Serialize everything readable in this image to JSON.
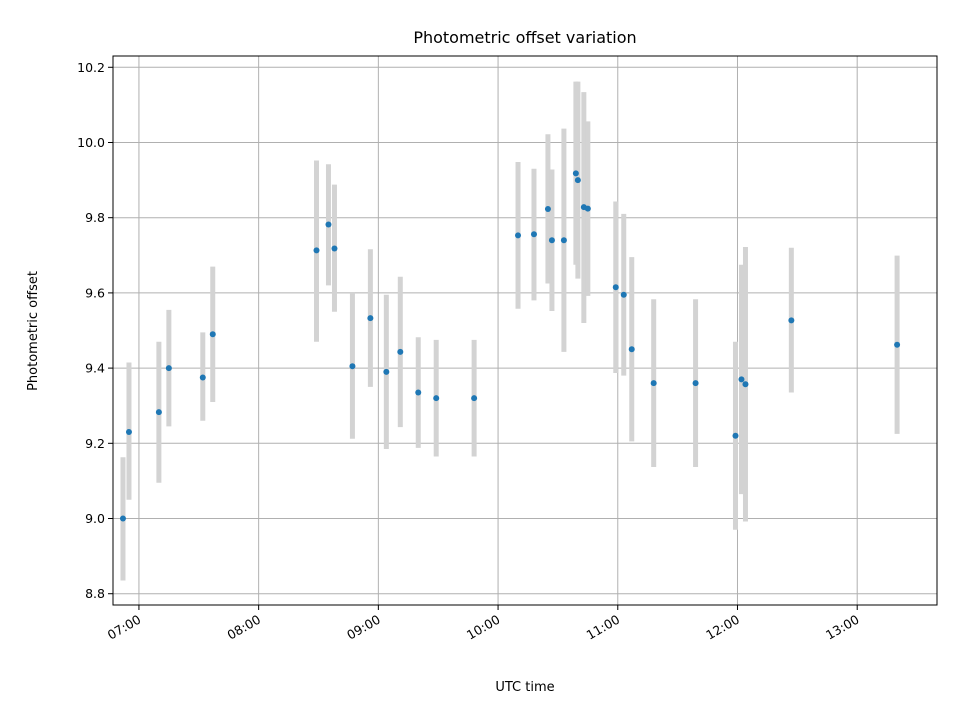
{
  "chart_data": {
    "type": "scatter",
    "title": "Photometric offset variation",
    "xlabel": "UTC time",
    "ylabel": "Photometric offset",
    "x_axis_type": "time",
    "xlim": [
      "06:47",
      "13:40"
    ],
    "ylim": [
      8.77,
      10.23
    ],
    "x_ticks": [
      "07:00",
      "08:00",
      "09:00",
      "10:00",
      "11:00",
      "12:00",
      "13:00"
    ],
    "y_ticks": [
      8.8,
      9.0,
      9.2,
      9.4,
      9.6,
      9.8,
      10.0,
      10.2
    ],
    "grid": true,
    "marker_color": "#1f77b4",
    "errorbar_color": "#d3d3d3",
    "points": [
      {
        "time": "06:52",
        "value": 9.0,
        "lower": 8.835,
        "upper": 9.163
      },
      {
        "time": "06:55",
        "value": 9.23,
        "lower": 9.05,
        "upper": 9.415
      },
      {
        "time": "07:10",
        "value": 9.283,
        "lower": 9.095,
        "upper": 9.47
      },
      {
        "time": "07:15",
        "value": 9.4,
        "lower": 9.245,
        "upper": 9.555
      },
      {
        "time": "07:32",
        "value": 9.375,
        "lower": 9.26,
        "upper": 9.495
      },
      {
        "time": "07:37",
        "value": 9.49,
        "lower": 9.31,
        "upper": 9.67
      },
      {
        "time": "08:29",
        "value": 9.713,
        "lower": 9.47,
        "upper": 9.952
      },
      {
        "time": "08:35",
        "value": 9.782,
        "lower": 9.62,
        "upper": 9.942
      },
      {
        "time": "08:38",
        "value": 9.718,
        "lower": 9.55,
        "upper": 9.888
      },
      {
        "time": "08:47",
        "value": 9.405,
        "lower": 9.212,
        "upper": 9.6
      },
      {
        "time": "08:56",
        "value": 9.533,
        "lower": 9.35,
        "upper": 9.716
      },
      {
        "time": "09:04",
        "value": 9.39,
        "lower": 9.185,
        "upper": 9.595
      },
      {
        "time": "09:11",
        "value": 9.443,
        "lower": 9.243,
        "upper": 9.643
      },
      {
        "time": "09:20",
        "value": 9.335,
        "lower": 9.188,
        "upper": 9.482
      },
      {
        "time": "09:29",
        "value": 9.32,
        "lower": 9.165,
        "upper": 9.475
      },
      {
        "time": "09:48",
        "value": 9.32,
        "lower": 9.165,
        "upper": 9.475
      },
      {
        "time": "10:10",
        "value": 9.753,
        "lower": 9.558,
        "upper": 9.948
      },
      {
        "time": "10:18",
        "value": 9.756,
        "lower": 9.58,
        "upper": 9.93
      },
      {
        "time": "10:25",
        "value": 9.823,
        "lower": 9.625,
        "upper": 10.022
      },
      {
        "time": "10:27",
        "value": 9.74,
        "lower": 9.552,
        "upper": 9.928
      },
      {
        "time": "10:33",
        "value": 9.74,
        "lower": 9.443,
        "upper": 10.037
      },
      {
        "time": "10:39",
        "value": 9.918,
        "lower": 9.675,
        "upper": 10.162
      },
      {
        "time": "10:40",
        "value": 9.9,
        "lower": 9.638,
        "upper": 10.162
      },
      {
        "time": "10:43",
        "value": 9.828,
        "lower": 9.52,
        "upper": 10.134
      },
      {
        "time": "10:45",
        "value": 9.824,
        "lower": 9.592,
        "upper": 10.056
      },
      {
        "time": "10:59",
        "value": 9.615,
        "lower": 9.387,
        "upper": 9.843
      },
      {
        "time": "11:03",
        "value": 9.595,
        "lower": 9.38,
        "upper": 9.81
      },
      {
        "time": "11:07",
        "value": 9.45,
        "lower": 9.205,
        "upper": 9.695
      },
      {
        "time": "11:18",
        "value": 9.36,
        "lower": 9.137,
        "upper": 9.583
      },
      {
        "time": "11:39",
        "value": 9.36,
        "lower": 9.137,
        "upper": 9.583
      },
      {
        "time": "11:59",
        "value": 9.22,
        "lower": 8.97,
        "upper": 9.47
      },
      {
        "time": "12:02",
        "value": 9.37,
        "lower": 9.065,
        "upper": 9.675
      },
      {
        "time": "12:04",
        "value": 9.357,
        "lower": 8.992,
        "upper": 9.722
      },
      {
        "time": "12:27",
        "value": 9.527,
        "lower": 9.335,
        "upper": 9.72
      },
      {
        "time": "13:20",
        "value": 9.462,
        "lower": 9.225,
        "upper": 9.699
      }
    ]
  }
}
